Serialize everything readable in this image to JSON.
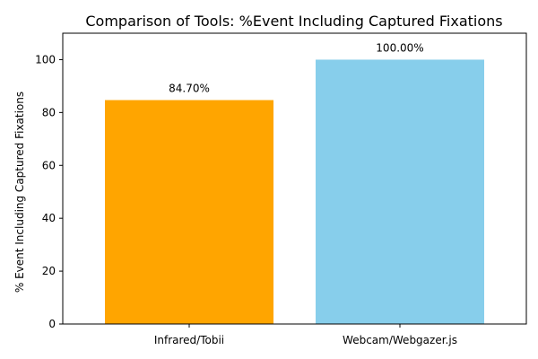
{
  "chart_data": {
    "type": "bar",
    "title": "Comparison of Tools: %Event Including Captured Fixations",
    "xlabel": "",
    "ylabel": "% Event Including Captured Fixations",
    "categories": [
      "Infrared/Tobii",
      "Webcam/Webgazer.js"
    ],
    "values": [
      84.7,
      100.0
    ],
    "data_labels": [
      "84.70%",
      "100.00%"
    ],
    "colors": [
      "#FFA500",
      "#87CEEB"
    ],
    "ylim": [
      0,
      110
    ],
    "yticks": [
      0,
      20,
      40,
      60,
      80,
      100
    ],
    "grid": false,
    "legend": "none"
  }
}
